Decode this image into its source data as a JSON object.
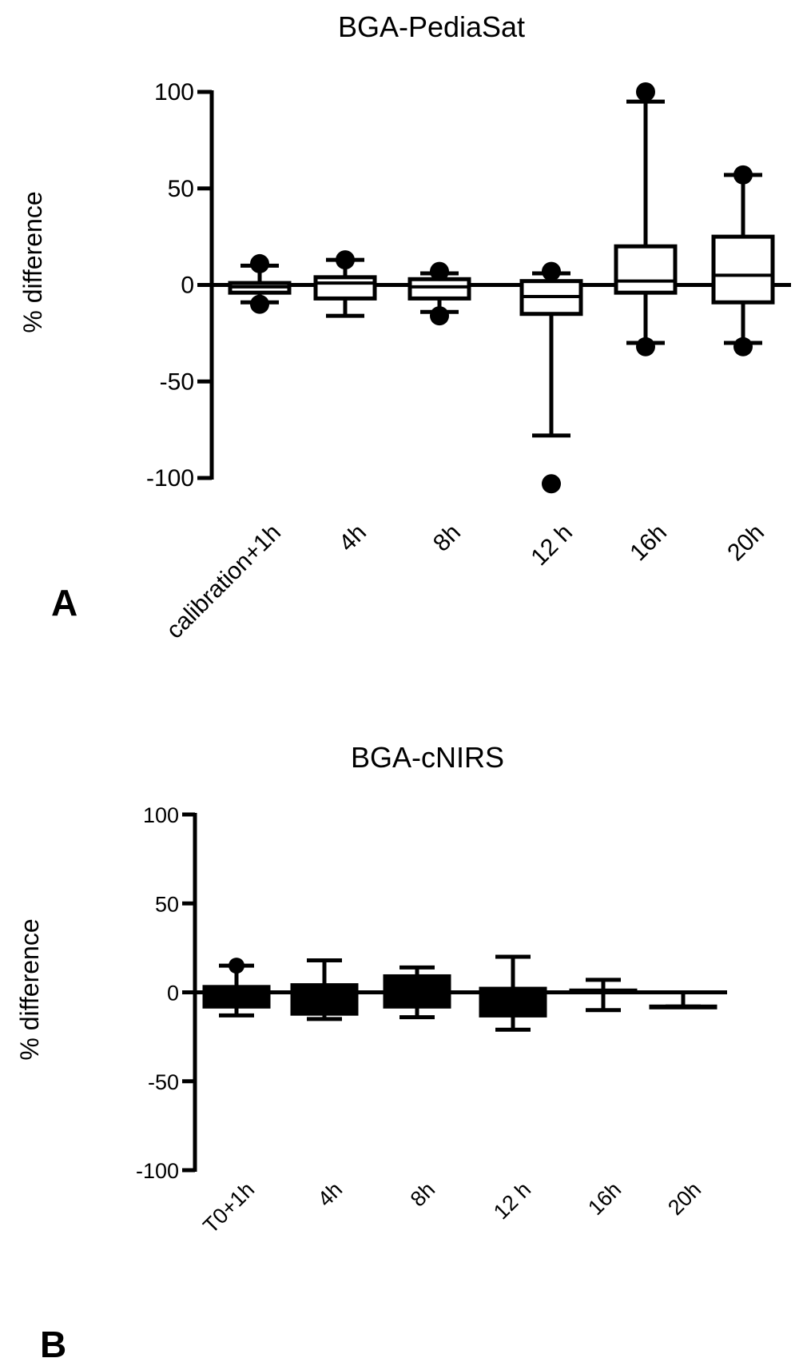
{
  "panels": {
    "a": {
      "letter": "A"
    },
    "b": {
      "letter": "B"
    }
  },
  "chart_data": [
    {
      "type": "box",
      "title": "BGA-PediaSat",
      "xlabel": "",
      "ylabel": "% difference",
      "ylim": [
        -100,
        100
      ],
      "yticks": [
        100,
        50,
        0,
        -50,
        -100
      ],
      "ytick_labels": [
        "100",
        "50",
        "0",
        "-50",
        "-100"
      ],
      "categories": [
        "calibration+1h",
        "4h",
        "8h",
        "12 h",
        "16h",
        "20h"
      ],
      "box_fill": "#ffffff",
      "boxes": [
        {
          "whisker_low": -9,
          "q1": -4,
          "median": -1,
          "q3": 1,
          "whisker_high": 10,
          "outliers": [
            -10,
            11
          ]
        },
        {
          "whisker_low": -16,
          "q1": -7,
          "median": 1,
          "q3": 4,
          "whisker_high": 13,
          "outliers": [
            13
          ]
        },
        {
          "whisker_low": -14,
          "q1": -7,
          "median": -1,
          "q3": 3,
          "whisker_high": 6,
          "outliers": [
            -16,
            7
          ]
        },
        {
          "whisker_low": -78,
          "q1": -15,
          "median": -6,
          "q3": 2,
          "whisker_high": 6,
          "outliers": [
            -103,
            7
          ]
        },
        {
          "whisker_low": -30,
          "q1": -4,
          "median": 2,
          "q3": 20,
          "whisker_high": 95,
          "outliers": [
            -32,
            100
          ]
        },
        {
          "whisker_low": -30,
          "q1": -9,
          "median": 5,
          "q3": 25,
          "whisker_high": 57,
          "outliers": [
            -32,
            57
          ]
        }
      ]
    },
    {
      "type": "box",
      "title": "BGA-cNIRS",
      "xlabel": "",
      "ylabel": "% difference",
      "ylim": [
        -100,
        100
      ],
      "yticks": [
        100,
        50,
        0,
        -50,
        -100
      ],
      "ytick_labels": [
        "100",
        "50",
        "0",
        "-50",
        "-100"
      ],
      "categories": [
        "T0+1h",
        "4h",
        "8h",
        "12 h",
        "16h",
        "20h"
      ],
      "box_fill": "#000000",
      "boxes": [
        {
          "whisker_low": -13,
          "q1": -8,
          "median": -2,
          "q3": 3,
          "whisker_high": 15,
          "outliers": [
            15
          ]
        },
        {
          "whisker_low": -15,
          "q1": -12,
          "median": -3,
          "q3": 4,
          "whisker_high": 18,
          "outliers": []
        },
        {
          "whisker_low": -14,
          "q1": -8,
          "median": 0,
          "q3": 9,
          "whisker_high": 14,
          "outliers": []
        },
        {
          "whisker_low": -21,
          "q1": -13,
          "median": -4,
          "q3": 2,
          "whisker_high": 20,
          "outliers": []
        },
        {
          "whisker_low": -10,
          "q1": 0,
          "median": 0,
          "q3": 1,
          "whisker_high": 7,
          "outliers": []
        },
        {
          "whisker_low": -8,
          "q1": -8,
          "median": -8,
          "q3": -8,
          "whisker_high": 0,
          "outliers": []
        }
      ]
    }
  ]
}
